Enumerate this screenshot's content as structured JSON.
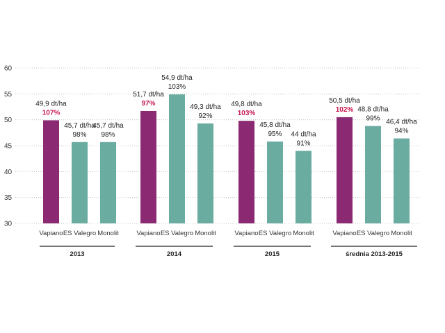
{
  "chart_data": {
    "type": "bar",
    "ylim": [
      30,
      60
    ],
    "yticks": [
      30,
      35,
      40,
      45,
      50,
      55,
      60
    ],
    "grid": true,
    "colors": {
      "highlight": "#8b2a72",
      "default": "#6aada0",
      "highlight_pct": "#c8174f"
    },
    "groups": [
      {
        "name": "2013",
        "bars": [
          {
            "category": "Vapiano",
            "value": 49.9,
            "label": "49,9 dt/ha",
            "pct": "107%",
            "highlight": true
          },
          {
            "category": "ES Valegro",
            "value": 45.7,
            "label": "45,7 dt/ha",
            "pct": "98%"
          },
          {
            "category": "Monolit",
            "value": 45.7,
            "label": "45,7 dt/ha",
            "pct": "98%"
          }
        ]
      },
      {
        "name": "2014",
        "bars": [
          {
            "category": "Vapiano",
            "value": 51.7,
            "label": "51,7 dt/ha",
            "pct": "97%",
            "highlight": true
          },
          {
            "category": "ES Valegro",
            "value": 54.9,
            "label": "54,9 dt/ha",
            "pct": "103%"
          },
          {
            "category": "Monolit",
            "value": 49.3,
            "label": "49,3 dt/ha",
            "pct": "92%"
          }
        ]
      },
      {
        "name": "2015",
        "bars": [
          {
            "category": "Vapiano",
            "value": 49.8,
            "label": "49,8 dt/ha",
            "pct": "103%",
            "highlight": true
          },
          {
            "category": "ES Valegro",
            "value": 45.8,
            "label": "45,8 dt/ha",
            "pct": "95%"
          },
          {
            "category": "Monolit",
            "value": 44,
            "label": "44 dt/ha",
            "pct": "91%"
          }
        ]
      },
      {
        "name": "średnia 2013-2015",
        "bars": [
          {
            "category": "Vapiano",
            "value": 50.5,
            "label": "50,5 dt/ha",
            "pct": "102%",
            "highlight": true
          },
          {
            "category": "ES Valegro",
            "value": 48.8,
            "label": "48,8 dt/ha",
            "pct": "99%"
          },
          {
            "category": "Monolit",
            "value": 46.4,
            "label": "46,4 dt/ha",
            "pct": "94%"
          }
        ]
      }
    ]
  }
}
